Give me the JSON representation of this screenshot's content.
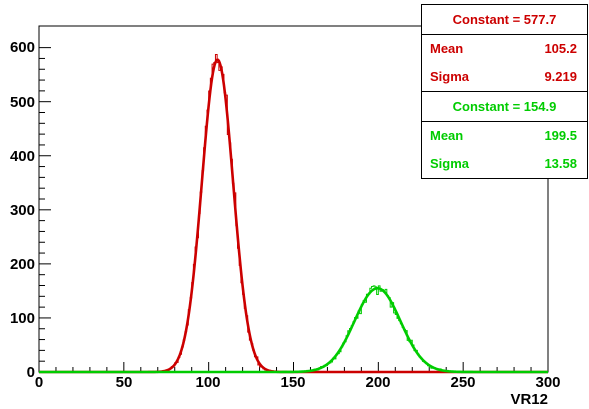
{
  "chart_data": {
    "type": "histogram",
    "xlabel": "VR12",
    "ylabel": "",
    "xlim": [
      0,
      300
    ],
    "ylim": [
      0,
      640
    ],
    "x_ticks": [
      "0",
      "50",
      "100",
      "150",
      "200",
      "250",
      "300"
    ],
    "y_ticks": [
      "0",
      "100",
      "200",
      "300",
      "400",
      "500",
      "600"
    ],
    "grid": false,
    "series": [
      {
        "color": "#cc0000",
        "constant": 577.7,
        "mean": 105.2,
        "sigma": 9.219
      },
      {
        "color": "#00cc00",
        "constant": 154.9,
        "mean": 199.5,
        "sigma": 13.58
      }
    ]
  },
  "stats": [
    {
      "constant_label": "Constant = 577.7",
      "mean_label": "Mean",
      "mean_value": "105.2",
      "sigma_label": "Sigma",
      "sigma_value": "9.219",
      "color": "#cc0000"
    },
    {
      "constant_label": "Constant = 154.9",
      "mean_label": "Mean",
      "mean_value": "199.5",
      "sigma_label": "Sigma",
      "sigma_value": "13.58",
      "color": "#00cc00"
    }
  ]
}
